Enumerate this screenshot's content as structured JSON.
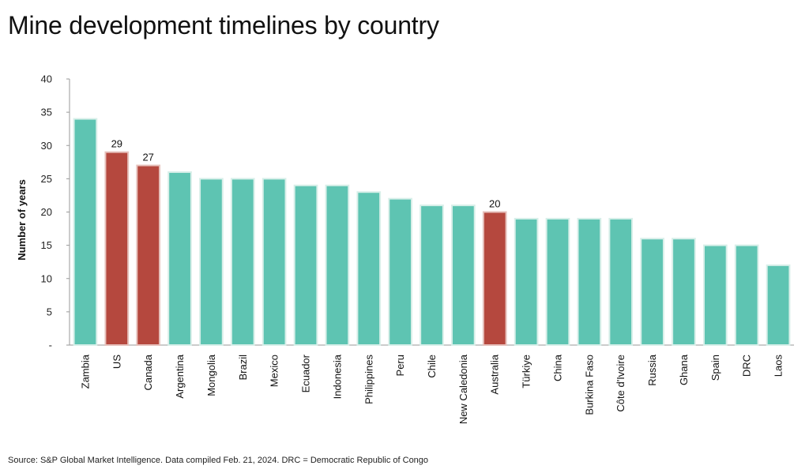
{
  "title": "Mine development timelines by country",
  "source": "Source: S&P Global Market Intelligence. Data compiled Feb. 21, 2024. DRC = Democratic Republic of Congo",
  "chart_data": {
    "type": "bar",
    "title": "Mine development timelines by country",
    "xlabel": "",
    "ylabel": "Number of years",
    "ylim": [
      0,
      40
    ],
    "yticks": [
      0,
      5,
      10,
      15,
      20,
      25,
      30,
      35,
      40
    ],
    "ytick_labels": [
      "-",
      "5",
      "10",
      "15",
      "20",
      "25",
      "30",
      "35",
      "40"
    ],
    "grid": false,
    "categories": [
      "Zambia",
      "US",
      "Canada",
      "Argentina",
      "Mongolia",
      "Brazil",
      "Mexico",
      "Ecuador",
      "Indonesia",
      "Philippines",
      "Peru",
      "Chile",
      "New Caledonia",
      "Australia",
      "Türkiye",
      "China",
      "Burkina Faso",
      "Côte d'Ivoire",
      "Russia",
      "Ghana",
      "Spain",
      "DRC",
      "Laos"
    ],
    "values": [
      34,
      29,
      27,
      26,
      25,
      25,
      25,
      24,
      24,
      23,
      22,
      21,
      21,
      20,
      19,
      19,
      19,
      19,
      16,
      16,
      15,
      15,
      12
    ],
    "highlighted": [
      "US",
      "Canada",
      "Australia"
    ],
    "data_labels": {
      "US": "29",
      "Canada": "27",
      "Australia": "20"
    },
    "colors": {
      "default": "#5EC4B2",
      "highlight": "#B5483E",
      "default_edge": "#d8efe9",
      "highlight_edge": "#e6c1bc"
    }
  }
}
